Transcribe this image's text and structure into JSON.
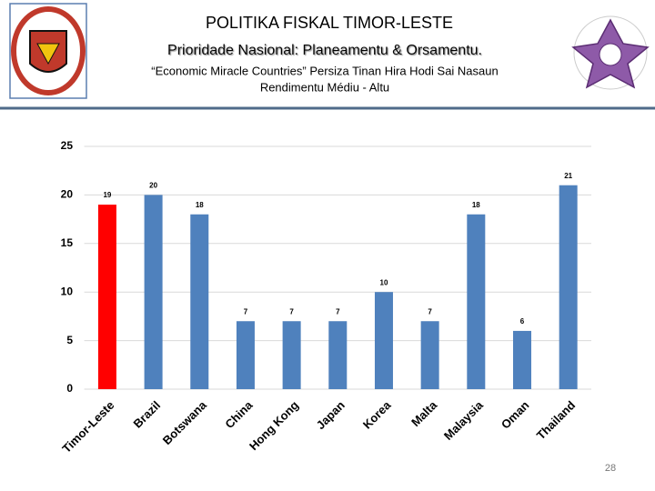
{
  "header": {
    "title": "POLITIKA FISKAL TIMOR-LESTE",
    "subtitle": "Prioridade Nasional: Planeamentu & Orsamentu.",
    "note_lines": [
      "“Economic Miracle Countries” Persiza Tinan Hira Hodi Sai Nasaun",
      "Rendimentu Médiu - Altu"
    ]
  },
  "chart_data": {
    "type": "bar",
    "categories": [
      "Timor-Leste",
      "Brazil",
      "Botswana",
      "China",
      "Hong Kong",
      "Japan",
      "Korea",
      "Malta",
      "Malaysia",
      "Oman",
      "Thailand"
    ],
    "values": [
      19,
      20,
      18,
      7,
      7,
      7,
      10,
      7,
      18,
      6,
      21
    ],
    "colors": [
      "#ff0000",
      "#4f81bd",
      "#4f81bd",
      "#4f81bd",
      "#4f81bd",
      "#4f81bd",
      "#4f81bd",
      "#4f81bd",
      "#4f81bd",
      "#4f81bd",
      "#4f81bd"
    ],
    "ylim": [
      0,
      25
    ],
    "yticks": [
      0,
      5,
      10,
      15,
      20,
      25
    ],
    "grid": true
  },
  "page_number": "28"
}
